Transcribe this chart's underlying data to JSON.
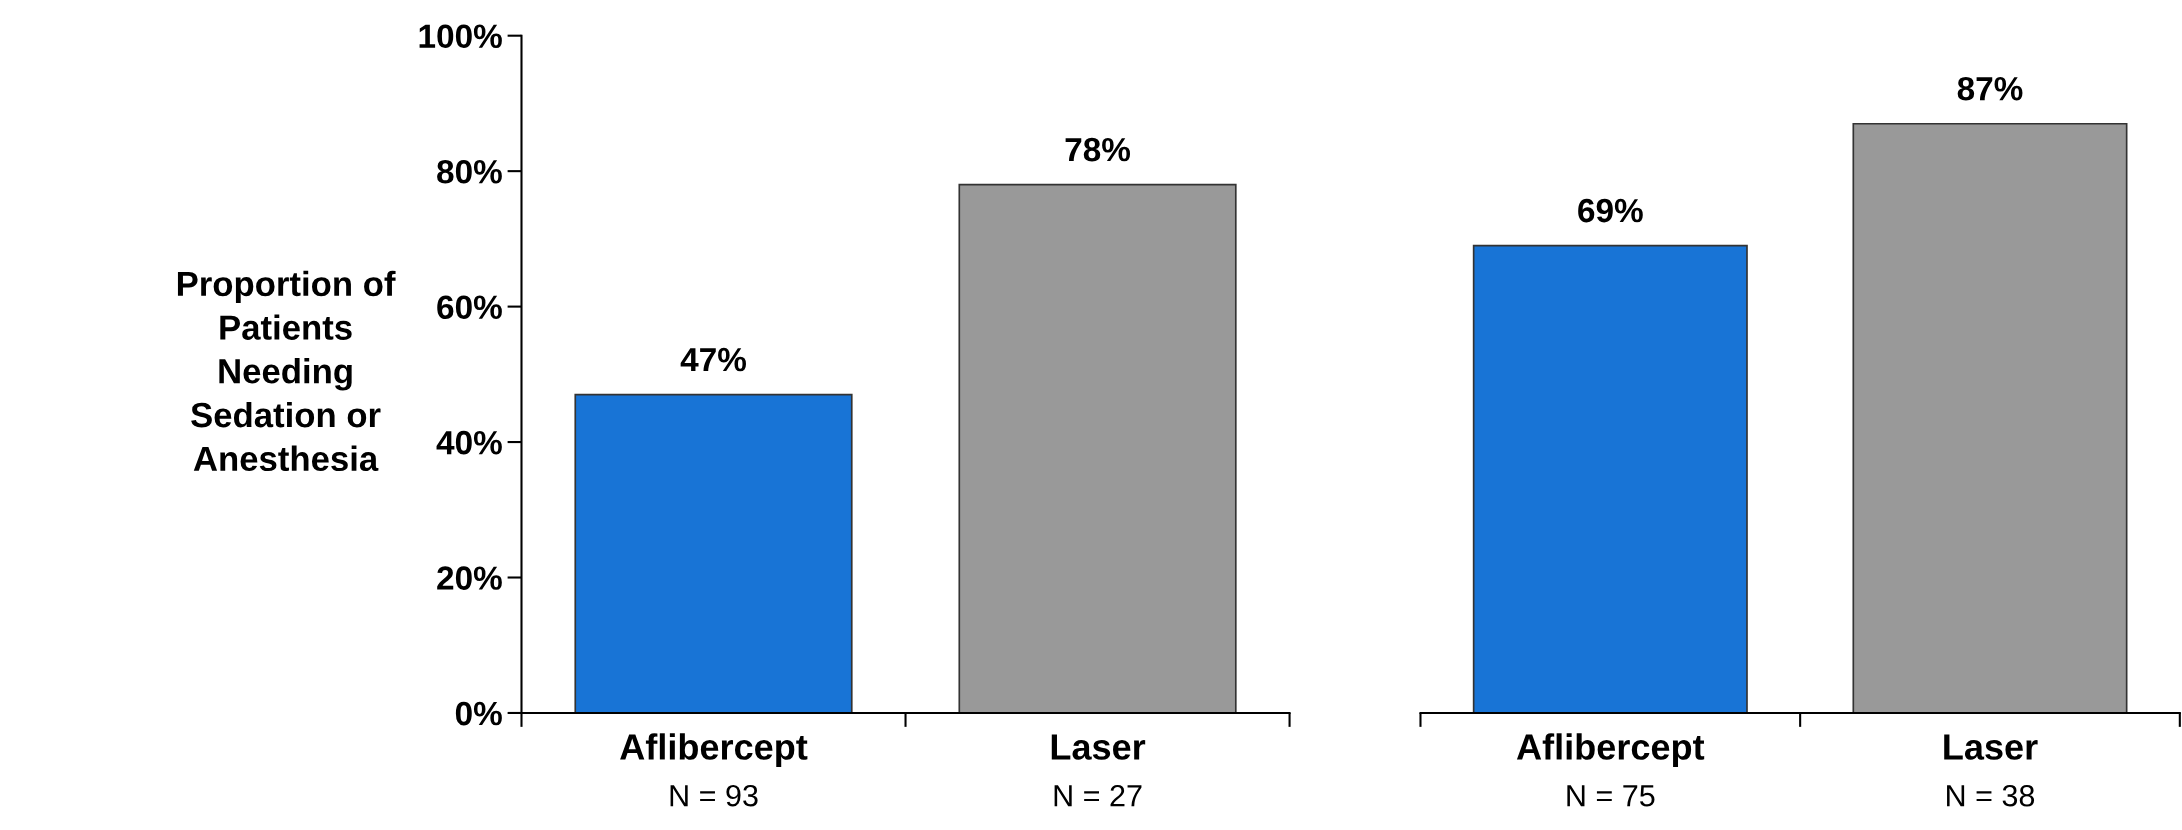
{
  "chart_data": [
    {
      "type": "bar",
      "ylabel": "Proportion of\nPatients\nNeeding\nSedation or\nAnesthesia",
      "categories": [
        "Aflibercept",
        "Laser"
      ],
      "values": [
        47,
        78
      ],
      "colors": [
        "#1874d6",
        "#999999"
      ],
      "ylim": [
        0,
        100
      ],
      "yticks": [
        {
          "value": 0,
          "label": "0%"
        },
        {
          "value": 20,
          "label": "20%"
        },
        {
          "value": 40,
          "label": "40%"
        },
        {
          "value": 60,
          "label": "60%"
        },
        {
          "value": 80,
          "label": "80%"
        },
        {
          "value": 100,
          "label": "100%"
        }
      ],
      "value_labels": [
        "47%",
        "78%"
      ],
      "annotations": [
        "N = 93",
        "N = 27"
      ],
      "grid": false,
      "legend": false
    },
    {
      "type": "bar",
      "categories": [
        "Aflibercept",
        "Laser"
      ],
      "values": [
        69,
        87
      ],
      "colors": [
        "#1874d6",
        "#999999"
      ],
      "ylim": [
        0,
        100
      ],
      "tick_labels": "x",
      "value_labels": [
        "69%",
        "87%"
      ],
      "annotations": [
        "N = 75",
        "N = 38"
      ],
      "grid": false,
      "legend": false
    }
  ]
}
